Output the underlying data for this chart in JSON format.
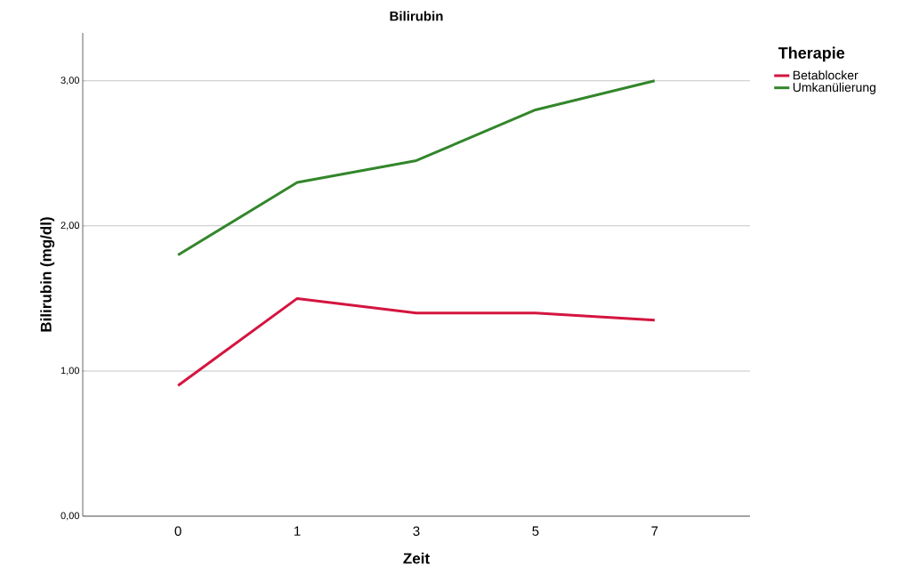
{
  "chart_data": {
    "type": "line",
    "title": "Bilirubin",
    "xlabel": "Zeit",
    "ylabel": "Bilirubin (mg/dl)",
    "legend_title": "Therapie",
    "categories": [
      "0",
      "1",
      "3",
      "5",
      "7"
    ],
    "series": [
      {
        "name": "Betablocker",
        "color": "#d4153f",
        "values": [
          0.9,
          1.5,
          1.4,
          1.4,
          1.35
        ]
      },
      {
        "name": "Umkanülierung",
        "color": "#33862b",
        "values": [
          1.8,
          2.3,
          2.45,
          2.8,
          3.0
        ]
      }
    ],
    "ylim": [
      0,
      3.33
    ],
    "yticks": [
      {
        "value": 0,
        "label": "0,00"
      },
      {
        "value": 1,
        "label": "1,00"
      },
      {
        "value": 2,
        "label": "2,00"
      },
      {
        "value": 3,
        "label": "3,00"
      }
    ],
    "grid": "y",
    "legend": "top right",
    "marker": "none",
    "line_style": "solid"
  }
}
